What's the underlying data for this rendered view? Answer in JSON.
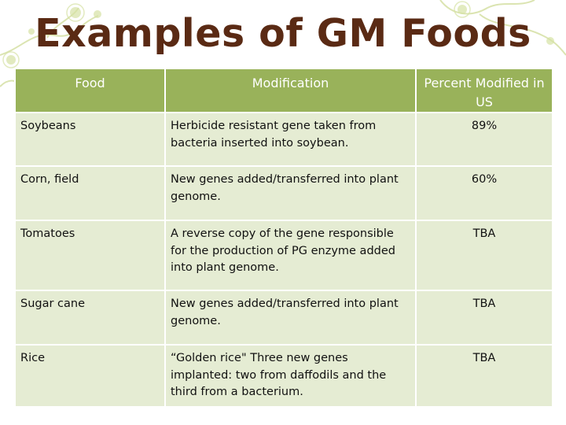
{
  "slide": {
    "title": "Examples of GM Foods"
  },
  "table": {
    "headers": {
      "food": "Food",
      "modification": "Modification",
      "percent": "Percent Modified in US"
    },
    "rows": [
      {
        "food": "Soybeans",
        "modification": "Herbicide resistant gene taken from bacteria inserted into soybean.",
        "percent": "89%"
      },
      {
        "food": "Corn, field",
        "modification": "New genes added/transferred into plant genome.",
        "percent": "60%"
      },
      {
        "food": "Tomatoes",
        "modification": "A reverse copy of the gene responsible for the production of PG enzyme added into plant genome.",
        "percent": "TBA"
      },
      {
        "food": "Sugar cane",
        "modification": "New genes added/transferred into plant genome.",
        "percent": "TBA"
      },
      {
        "food": "Rice",
        "modification": "“Golden rice\" Three new genes implanted: two from daffodils and the third from a bacterium.",
        "percent": "TBA"
      }
    ]
  },
  "theme": {
    "title_color": "#5a2a14",
    "header_bg": "#99b25a",
    "row_bg": "#e5ecd3",
    "decor_color": "#c9d98a"
  }
}
